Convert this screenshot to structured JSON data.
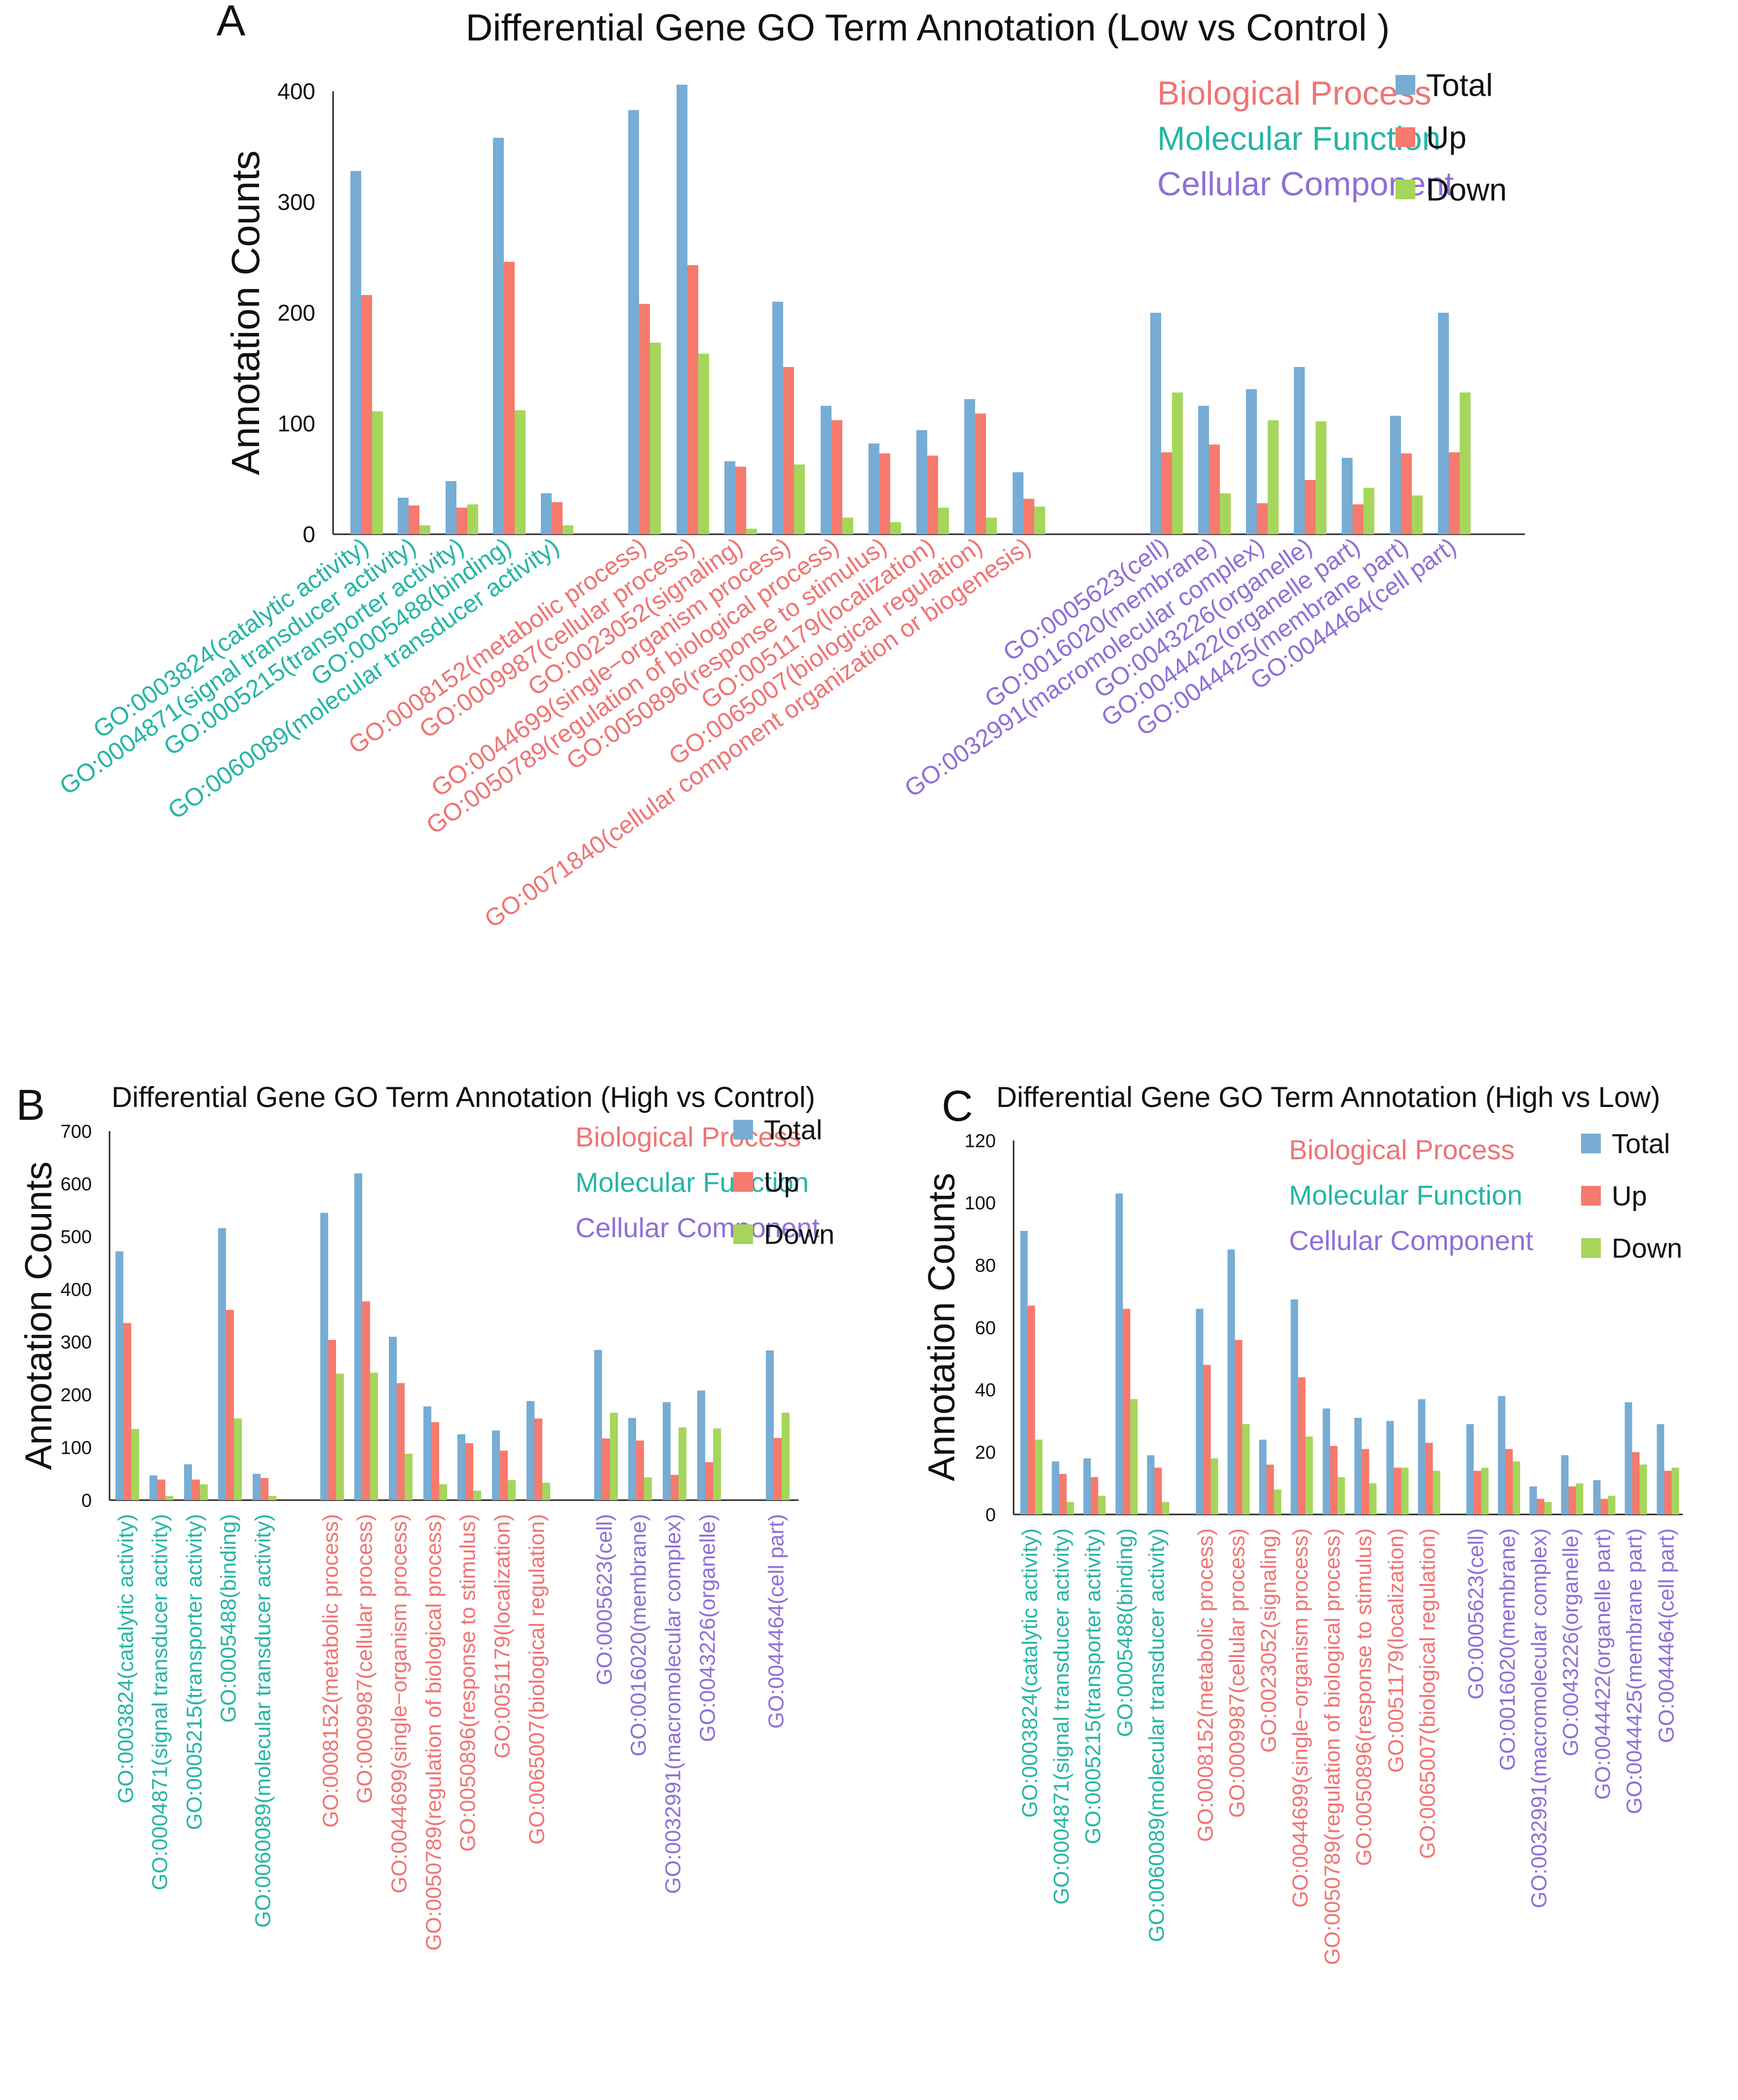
{
  "colors": {
    "total": "#77acd4",
    "up": "#f67a6d",
    "down": "#a5d65b",
    "bp": "#f07474",
    "mf": "#26b5a6",
    "cc": "#8f6fd8",
    "axis": "#222222"
  },
  "legend": {
    "categories": [
      {
        "label": "Biological Process",
        "cls": "bp"
      },
      {
        "label": "Molecular Function",
        "cls": "mf"
      },
      {
        "label": "Cellular Component",
        "cls": "cc"
      }
    ],
    "series": [
      "Total",
      "Up",
      "Down"
    ]
  },
  "chart_data": [
    {
      "panel": "A",
      "type": "bar",
      "title": "Differential Gene GO Term Annotation (Low vs Control )",
      "ylabel": "Annotation Counts",
      "xlabel": "",
      "ylim": [
        0,
        400
      ],
      "yticks": [
        0,
        100,
        200,
        300,
        400
      ],
      "legend_position": "top-right",
      "groups": [
        {
          "label": "GO:0003824(catalytic activity)",
          "cls": "mf",
          "total": 328,
          "up": 216,
          "down": 111
        },
        {
          "label": "GO:0004871(signal transducer activity)",
          "cls": "mf",
          "total": 33,
          "up": 26,
          "down": 8
        },
        {
          "label": "GO:0005215(transporter activity)",
          "cls": "mf",
          "total": 48,
          "up": 24,
          "down": 27
        },
        {
          "label": "GO:0005488(binding)",
          "cls": "mf",
          "total": 358,
          "up": 246,
          "down": 112
        },
        {
          "label": "GO:0060089(molecular transducer activity)",
          "cls": "mf",
          "total": 37,
          "up": 29,
          "down": 8
        },
        {
          "label": "GO:0008152(metabolic process)",
          "cls": "bp",
          "total": 383,
          "up": 208,
          "down": 173
        },
        {
          "label": "GO:0009987(cellular process)",
          "cls": "bp",
          "total": 406,
          "up": 243,
          "down": 163
        },
        {
          "label": "GO:0023052(signaling)",
          "cls": "bp",
          "total": 66,
          "up": 61,
          "down": 5
        },
        {
          "label": "GO:0044699(single−organism process)",
          "cls": "bp",
          "total": 210,
          "up": 151,
          "down": 63
        },
        {
          "label": "GO:0050789(regulation of biological process)",
          "cls": "bp",
          "total": 116,
          "up": 103,
          "down": 15
        },
        {
          "label": "GO:0050896(response to stimulus)",
          "cls": "bp",
          "total": 82,
          "up": 73,
          "down": 11
        },
        {
          "label": "GO:0051179(localization)",
          "cls": "bp",
          "total": 94,
          "up": 71,
          "down": 24
        },
        {
          "label": "GO:0065007(biological regulation)",
          "cls": "bp",
          "total": 122,
          "up": 109,
          "down": 15
        },
        {
          "label": "GO:0071840(cellular component organization or biogenesis)",
          "cls": "bp",
          "total": 56,
          "up": 32,
          "down": 25
        },
        {
          "label": "GO:0005623(cell)",
          "cls": "cc",
          "total": 200,
          "up": 74,
          "down": 128
        },
        {
          "label": "GO:0016020(membrane)",
          "cls": "cc",
          "total": 116,
          "up": 81,
          "down": 37
        },
        {
          "label": "GO:0032991(macromolecular complex)",
          "cls": "cc",
          "total": 131,
          "up": 28,
          "down": 103
        },
        {
          "label": "GO:0043226(organelle)",
          "cls": "cc",
          "total": 151,
          "up": 49,
          "down": 102
        },
        {
          "label": "GO:0044422(organelle part)",
          "cls": "cc",
          "total": 69,
          "up": 27,
          "down": 42
        },
        {
          "label": "GO:0044425(membrane part)",
          "cls": "cc",
          "total": 107,
          "up": 73,
          "down": 35
        },
        {
          "label": "GO:0044464(cell part)",
          "cls": "cc",
          "total": 200,
          "up": 74,
          "down": 128
        }
      ]
    },
    {
      "panel": "B",
      "type": "bar",
      "title": "Differential Gene GO Term Annotation (High vs Control)",
      "ylabel": "Annotation Counts",
      "xlabel": "",
      "ylim": [
        0,
        700
      ],
      "yticks": [
        0,
        100,
        200,
        300,
        400,
        500,
        600,
        700
      ],
      "legend_position": "top-right",
      "groups": [
        {
          "label": "GO:0003824(catalytic activity)",
          "cls": "mf",
          "total": 472,
          "up": 336,
          "down": 135
        },
        {
          "label": "GO:0004871(signal transducer activity)",
          "cls": "mf",
          "total": 47,
          "up": 39,
          "down": 8
        },
        {
          "label": "GO:0005215(transporter activity)",
          "cls": "mf",
          "total": 68,
          "up": 39,
          "down": 30
        },
        {
          "label": "GO:0005488(binding)",
          "cls": "mf",
          "total": 516,
          "up": 361,
          "down": 155
        },
        {
          "label": "GO:0060089(molecular transducer activity)",
          "cls": "mf",
          "total": 50,
          "up": 42,
          "down": 8
        },
        {
          "label": "GO:0008152(metabolic process)",
          "cls": "bp",
          "total": 545,
          "up": 304,
          "down": 240
        },
        {
          "label": "GO:0009987(cellular process)",
          "cls": "bp",
          "total": 620,
          "up": 377,
          "down": 242
        },
        {
          "label": "GO:0044699(single−organism process)",
          "cls": "bp",
          "total": 310,
          "up": 222,
          "down": 88
        },
        {
          "label": "GO:0050789(regulation of biological process)",
          "cls": "bp",
          "total": 178,
          "up": 148,
          "down": 30
        },
        {
          "label": "GO:0050896(response to stimulus)",
          "cls": "bp",
          "total": 125,
          "up": 108,
          "down": 18
        },
        {
          "label": "GO:0051179(localization)",
          "cls": "bp",
          "total": 132,
          "up": 94,
          "down": 38
        },
        {
          "label": "GO:0065007(biological regulation)",
          "cls": "bp",
          "total": 188,
          "up": 155,
          "down": 33
        },
        {
          "label": "GO:0005623(cell)",
          "cls": "cc",
          "total": 285,
          "up": 117,
          "down": 166
        },
        {
          "label": "GO:0016020(membrane)",
          "cls": "cc",
          "total": 156,
          "up": 113,
          "down": 43
        },
        {
          "label": "GO:0032991(macromolecular complex)",
          "cls": "cc",
          "total": 186,
          "up": 48,
          "down": 138
        },
        {
          "label": "GO:0043226(organelle)",
          "cls": "cc",
          "total": 208,
          "up": 72,
          "down": 136
        },
        {
          "label": "GO:0044464(cell part)",
          "cls": "cc",
          "total": 284,
          "up": 118,
          "down": 166
        }
      ]
    },
    {
      "panel": "C",
      "type": "bar",
      "title": "Differential Gene GO Term Annotation (High vs Low)",
      "ylabel": "Annotation Counts",
      "xlabel": "",
      "ylim": [
        0,
        120
      ],
      "yticks": [
        0,
        20,
        40,
        60,
        80,
        100,
        120
      ],
      "legend_position": "top-right",
      "groups": [
        {
          "label": "GO:0003824(catalytic activity)",
          "cls": "mf",
          "total": 91,
          "up": 67,
          "down": 24
        },
        {
          "label": "GO:0004871(signal transducer activity)",
          "cls": "mf",
          "total": 17,
          "up": 13,
          "down": 4
        },
        {
          "label": "GO:0005215(transporter activity)",
          "cls": "mf",
          "total": 18,
          "up": 12,
          "down": 6
        },
        {
          "label": "GO:0005488(binding)",
          "cls": "mf",
          "total": 103,
          "up": 66,
          "down": 37
        },
        {
          "label": "GO:0060089(molecular transducer activity)",
          "cls": "mf",
          "total": 19,
          "up": 15,
          "down": 4
        },
        {
          "label": "GO:0008152(metabolic process)",
          "cls": "bp",
          "total": 66,
          "up": 48,
          "down": 18
        },
        {
          "label": "GO:0009987(cellular process)",
          "cls": "bp",
          "total": 85,
          "up": 56,
          "down": 29
        },
        {
          "label": "GO:0023052(signaling)",
          "cls": "bp",
          "total": 24,
          "up": 16,
          "down": 8
        },
        {
          "label": "GO:0044699(single−organism process)",
          "cls": "bp",
          "total": 69,
          "up": 44,
          "down": 25
        },
        {
          "label": "GO:0050789(regulation of biological process)",
          "cls": "bp",
          "total": 34,
          "up": 22,
          "down": 12
        },
        {
          "label": "GO:0050896(response to stimulus)",
          "cls": "bp",
          "total": 31,
          "up": 21,
          "down": 10
        },
        {
          "label": "GO:0051179(localization)",
          "cls": "bp",
          "total": 30,
          "up": 15,
          "down": 15
        },
        {
          "label": "GO:0065007(biological regulation)",
          "cls": "bp",
          "total": 37,
          "up": 23,
          "down": 14
        },
        {
          "label": "GO:0005623(cell)",
          "cls": "cc",
          "total": 29,
          "up": 14,
          "down": 15
        },
        {
          "label": "GO:0016020(membrane)",
          "cls": "cc",
          "total": 38,
          "up": 21,
          "down": 17
        },
        {
          "label": "GO:0032991(macromolecular complex)",
          "cls": "cc",
          "total": 9,
          "up": 5,
          "down": 4
        },
        {
          "label": "GO:0043226(organelle)",
          "cls": "cc",
          "total": 19,
          "up": 9,
          "down": 10
        },
        {
          "label": "GO:0044422(organelle part)",
          "cls": "cc",
          "total": 11,
          "up": 5,
          "down": 6
        },
        {
          "label": "GO:0044425(membrane part)",
          "cls": "cc",
          "total": 36,
          "up": 20,
          "down": 16
        },
        {
          "label": "GO:0044464(cell part)",
          "cls": "cc",
          "total": 29,
          "up": 14,
          "down": 15
        }
      ]
    }
  ]
}
